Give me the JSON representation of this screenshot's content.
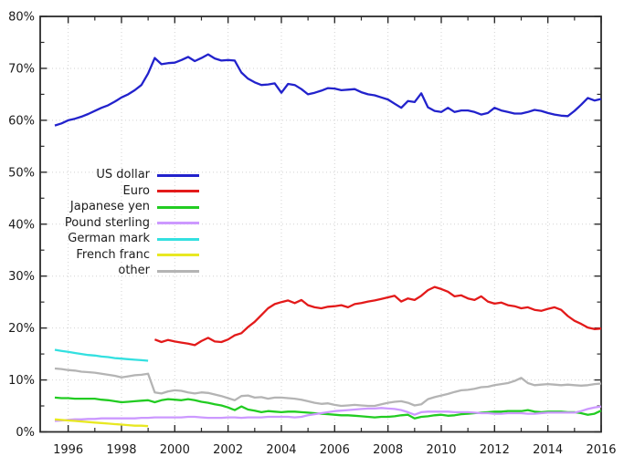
{
  "chart_data": {
    "type": "line",
    "title": "",
    "grid": "dotted",
    "legend_position": "inside-left-middle",
    "colors": {
      "background": "#ffffff",
      "border": "#2b2b2b",
      "tick": "#2b2b2b",
      "grid": "#d2d2d2",
      "text": "#1a1a1a"
    },
    "x_axis": {
      "year_at_left_border": 1994.95,
      "year_at_right_border": 2016.0,
      "major_ticks": [
        1996,
        1998,
        2000,
        2002,
        2004,
        2006,
        2008,
        2010,
        2012,
        2014,
        2016
      ],
      "major_tick_labels": [
        "1996",
        "1998",
        "2000",
        "2002",
        "2004",
        "2006",
        "2008",
        "2010",
        "2012",
        "2014",
        "2016"
      ],
      "minor_ticks": [
        1997,
        1999,
        2001,
        2003,
        2005,
        2007,
        2009,
        2011,
        2013,
        2015
      ]
    },
    "y_axis": {
      "min": 0,
      "max": 80,
      "unit": "%",
      "major_ticks": [
        0,
        10,
        20,
        30,
        40,
        50,
        60,
        70,
        80
      ],
      "major_tick_labels": [
        "0%",
        "10%",
        "20%",
        "30%",
        "40%",
        "50%",
        "60%",
        "70%",
        "80%"
      ],
      "minor_ticks": [
        5,
        15,
        25,
        35,
        45,
        55,
        65,
        75
      ]
    },
    "series": [
      {
        "name": "US dollar",
        "color": "#2222cc",
        "x_start": 1995.5,
        "x_step": 0.25,
        "values": [
          59.0,
          59.4,
          60.0,
          60.3,
          60.7,
          61.2,
          61.8,
          62.4,
          62.9,
          63.6,
          64.4,
          65.0,
          65.8,
          66.8,
          69.0,
          72.0,
          70.8,
          71.0,
          71.1,
          71.6,
          72.2,
          71.4,
          72.0,
          72.7,
          71.9,
          71.5,
          71.6,
          71.5,
          69.2,
          68.0,
          67.3,
          66.8,
          66.9,
          67.1,
          65.3,
          67.0,
          66.8,
          66.0,
          65.0,
          65.3,
          65.7,
          66.2,
          66.1,
          65.8,
          65.9,
          66.0,
          65.4,
          65.0,
          64.8,
          64.4,
          64.0,
          63.2,
          62.4,
          63.7,
          63.5,
          65.2,
          62.5,
          61.8,
          61.6,
          62.4,
          61.6,
          61.9,
          61.9,
          61.6,
          61.1,
          61.4,
          62.4,
          61.9,
          61.6,
          61.3,
          61.3,
          61.6,
          62.0,
          61.8,
          61.4,
          61.1,
          60.9,
          60.8,
          61.8,
          63.0,
          64.3,
          63.8,
          64.1
        ]
      },
      {
        "name": "Euro",
        "color": "#e31a1a",
        "x_start": 1999.25,
        "x_step": 0.25,
        "values": [
          17.8,
          17.3,
          17.7,
          17.4,
          17.2,
          17.0,
          16.7,
          17.5,
          18.1,
          17.4,
          17.3,
          17.8,
          18.6,
          19.0,
          20.2,
          21.2,
          22.5,
          23.8,
          24.6,
          25.0,
          25.3,
          24.8,
          25.4,
          24.4,
          24.0,
          23.8,
          24.1,
          24.2,
          24.4,
          24.0,
          24.6,
          24.8,
          25.1,
          25.3,
          25.6,
          25.9,
          26.2,
          25.1,
          25.7,
          25.4,
          26.2,
          27.3,
          27.9,
          27.5,
          27.0,
          26.1,
          26.3,
          25.7,
          25.4,
          26.1,
          25.1,
          24.7,
          24.9,
          24.4,
          24.2,
          23.8,
          24.0,
          23.5,
          23.3,
          23.7,
          24.0,
          23.5,
          22.3,
          21.4,
          20.8,
          20.1,
          19.8,
          19.9
        ]
      },
      {
        "name": "Japanese yen",
        "color": "#22cc22",
        "x_start": 1995.5,
        "x_step": 0.25,
        "values": [
          6.6,
          6.5,
          6.5,
          6.4,
          6.4,
          6.4,
          6.4,
          6.2,
          6.1,
          5.9,
          5.7,
          5.8,
          5.9,
          6.0,
          6.1,
          5.7,
          6.1,
          6.3,
          6.2,
          6.1,
          6.3,
          6.1,
          5.8,
          5.6,
          5.3,
          5.1,
          4.7,
          4.2,
          4.9,
          4.3,
          4.1,
          3.8,
          4.0,
          3.9,
          3.8,
          3.9,
          3.9,
          3.8,
          3.7,
          3.6,
          3.5,
          3.4,
          3.3,
          3.2,
          3.2,
          3.1,
          3.0,
          2.9,
          2.8,
          2.9,
          2.9,
          3.0,
          3.2,
          3.3,
          2.6,
          2.9,
          3.0,
          3.2,
          3.3,
          3.1,
          3.2,
          3.4,
          3.5,
          3.6,
          3.7,
          3.8,
          3.9,
          3.9,
          4.0,
          4.0,
          4.0,
          4.2,
          3.9,
          3.8,
          3.9,
          3.9,
          3.9,
          3.8,
          3.8,
          3.6,
          3.3,
          3.5,
          4.1
        ]
      },
      {
        "name": "Pound sterling",
        "color": "#cc99ff",
        "x_start": 1995.5,
        "x_step": 0.25,
        "values": [
          2.1,
          2.2,
          2.3,
          2.4,
          2.4,
          2.5,
          2.5,
          2.6,
          2.6,
          2.6,
          2.6,
          2.6,
          2.6,
          2.7,
          2.7,
          2.8,
          2.8,
          2.8,
          2.8,
          2.8,
          2.9,
          2.9,
          2.8,
          2.7,
          2.7,
          2.7,
          2.8,
          2.8,
          2.7,
          2.8,
          2.8,
          2.8,
          2.9,
          2.9,
          2.9,
          2.9,
          2.8,
          2.9,
          3.2,
          3.4,
          3.6,
          3.8,
          4.0,
          4.1,
          4.2,
          4.3,
          4.4,
          4.5,
          4.5,
          4.6,
          4.5,
          4.4,
          4.2,
          3.8,
          3.3,
          3.8,
          3.9,
          3.9,
          3.9,
          3.9,
          3.8,
          3.8,
          3.8,
          3.7,
          3.6,
          3.6,
          3.5,
          3.5,
          3.6,
          3.6,
          3.6,
          3.5,
          3.5,
          3.6,
          3.7,
          3.7,
          3.7,
          3.7,
          3.7,
          4.0,
          4.4,
          4.7,
          4.9
        ]
      },
      {
        "name": "German mark",
        "color": "#33e0e0",
        "x_start": 1995.5,
        "x_step": 0.25,
        "values": [
          15.8,
          15.6,
          15.4,
          15.2,
          15.0,
          14.8,
          14.7,
          14.5,
          14.4,
          14.2,
          14.1,
          14.0,
          13.9,
          13.8,
          13.7
        ]
      },
      {
        "name": "French franc",
        "color": "#e8e822",
        "x_start": 1995.5,
        "x_step": 0.25,
        "values": [
          2.4,
          2.3,
          2.2,
          2.1,
          2.0,
          1.9,
          1.8,
          1.7,
          1.6,
          1.5,
          1.4,
          1.3,
          1.2,
          1.2,
          1.1
        ]
      },
      {
        "name": "other",
        "color": "#b4b4b4",
        "x_start": 1995.5,
        "x_step": 0.25,
        "values": [
          12.2,
          12.1,
          11.9,
          11.8,
          11.6,
          11.5,
          11.4,
          11.2,
          11.0,
          10.8,
          10.5,
          10.7,
          10.9,
          11.0,
          11.2,
          7.6,
          7.4,
          7.8,
          8.0,
          7.9,
          7.6,
          7.4,
          7.6,
          7.5,
          7.2,
          6.9,
          6.5,
          6.1,
          6.9,
          7.0,
          6.6,
          6.7,
          6.4,
          6.6,
          6.6,
          6.5,
          6.4,
          6.2,
          5.9,
          5.6,
          5.4,
          5.5,
          5.2,
          5.0,
          5.1,
          5.2,
          5.1,
          5.0,
          5.0,
          5.3,
          5.6,
          5.8,
          5.9,
          5.6,
          5.1,
          5.3,
          6.3,
          6.7,
          7.0,
          7.3,
          7.7,
          8.0,
          8.1,
          8.3,
          8.6,
          8.7,
          9.0,
          9.2,
          9.4,
          9.8,
          10.4,
          9.4,
          9.0,
          9.1,
          9.2,
          9.1,
          9.0,
          9.1,
          9.0,
          8.9,
          9.0,
          9.2,
          9.3
        ]
      }
    ]
  }
}
